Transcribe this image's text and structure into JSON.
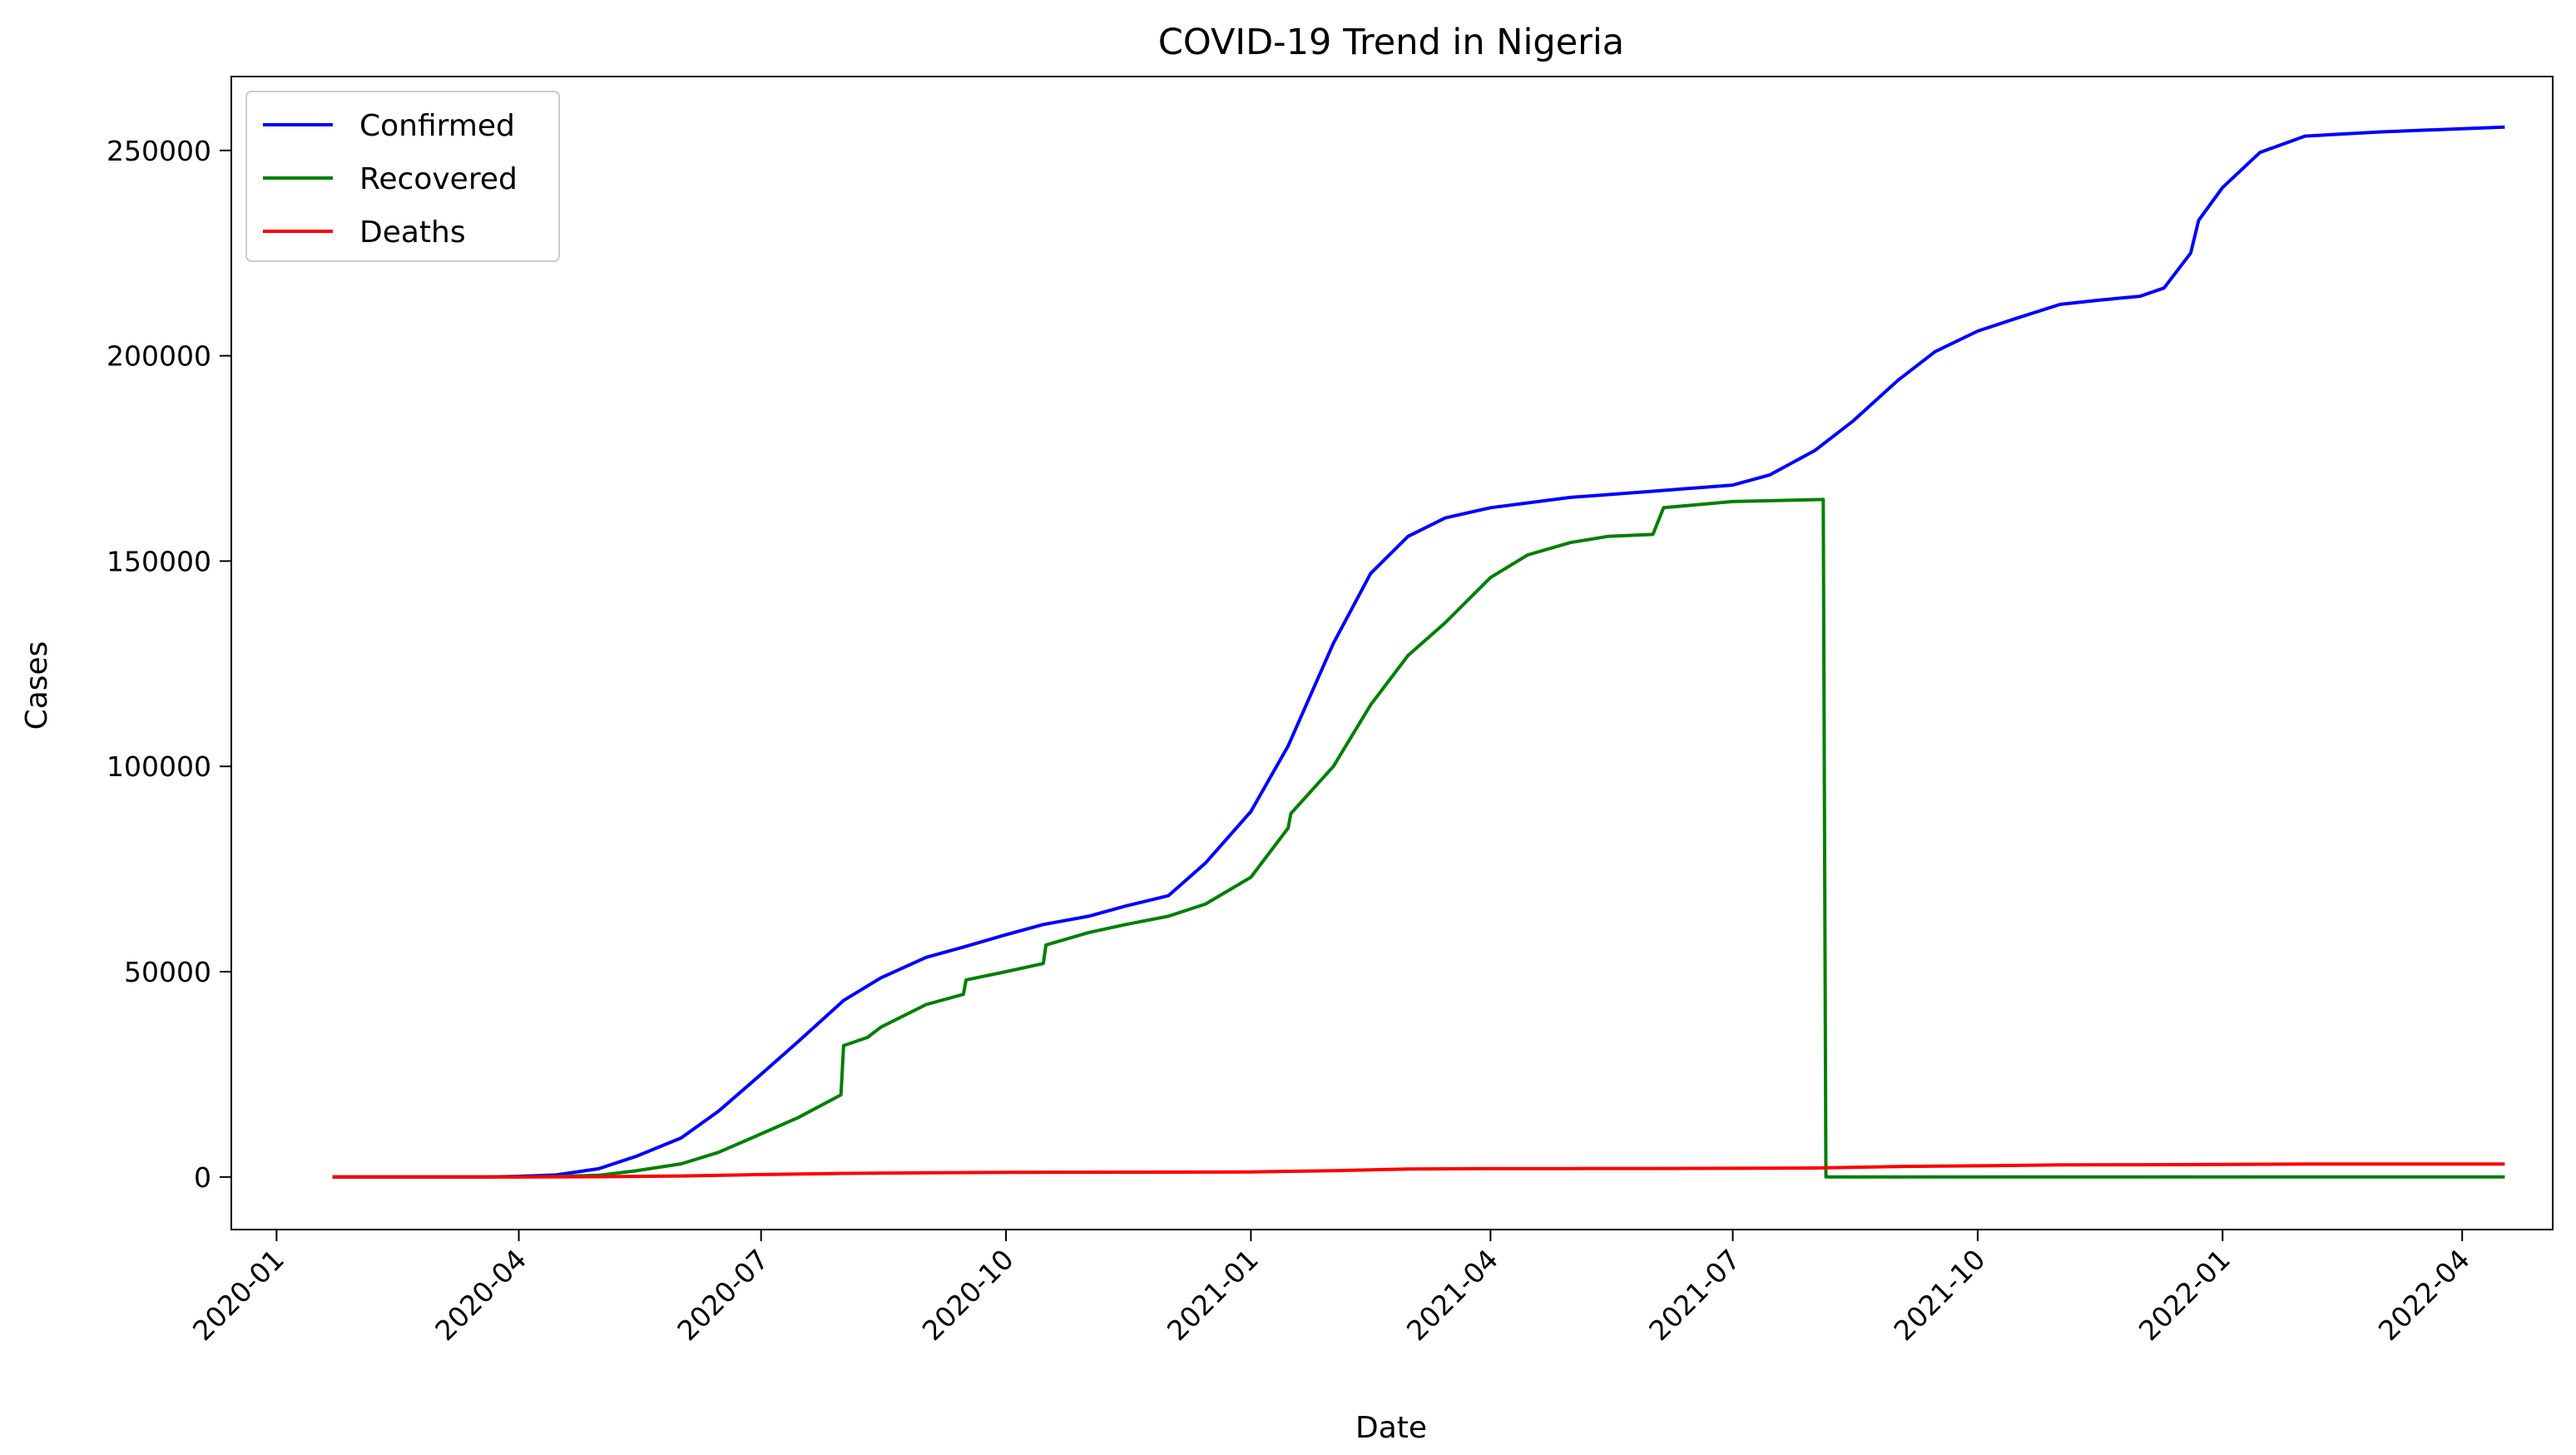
{
  "chart_data": {
    "type": "line",
    "title": "COVID-19 Trend in Nigeria",
    "xlabel": "Date",
    "ylabel": "Cases",
    "xlim": [
      "2019-12-15",
      "2022-05-05"
    ],
    "ylim": [
      -12800,
      268000
    ],
    "x_ticks": [
      "2020-01",
      "2020-04",
      "2020-07",
      "2020-10",
      "2021-01",
      "2021-04",
      "2021-07",
      "2021-10",
      "2022-01",
      "2022-04"
    ],
    "y_ticks": [
      0,
      50000,
      100000,
      150000,
      200000,
      250000
    ],
    "grid": false,
    "legend_position": "top-left",
    "series": [
      {
        "name": "Confirmed",
        "color": "#0000ff",
        "points": [
          [
            "2020-01-22",
            0
          ],
          [
            "2020-03-01",
            1
          ],
          [
            "2020-03-20",
            12
          ],
          [
            "2020-04-01",
            170
          ],
          [
            "2020-04-15",
            500
          ],
          [
            "2020-05-01",
            2000
          ],
          [
            "2020-05-15",
            5000
          ],
          [
            "2020-06-01",
            9500
          ],
          [
            "2020-06-15",
            16000
          ],
          [
            "2020-07-01",
            25000
          ],
          [
            "2020-07-15",
            33000
          ],
          [
            "2020-08-01",
            43000
          ],
          [
            "2020-08-15",
            48500
          ],
          [
            "2020-09-01",
            53500
          ],
          [
            "2020-09-15",
            56000
          ],
          [
            "2020-10-01",
            59000
          ],
          [
            "2020-10-15",
            61500
          ],
          [
            "2020-11-01",
            63500
          ],
          [
            "2020-11-15",
            66000
          ],
          [
            "2020-12-01",
            68500
          ],
          [
            "2020-12-15",
            76500
          ],
          [
            "2021-01-01",
            89000
          ],
          [
            "2021-01-15",
            105000
          ],
          [
            "2021-02-01",
            130000
          ],
          [
            "2021-02-15",
            147000
          ],
          [
            "2021-03-01",
            156000
          ],
          [
            "2021-03-15",
            160500
          ],
          [
            "2021-04-01",
            163000
          ],
          [
            "2021-05-01",
            165500
          ],
          [
            "2021-06-01",
            167000
          ],
          [
            "2021-07-01",
            168500
          ],
          [
            "2021-07-15",
            171000
          ],
          [
            "2021-08-01",
            177000
          ],
          [
            "2021-08-15",
            184000
          ],
          [
            "2021-09-01",
            194000
          ],
          [
            "2021-09-15",
            201000
          ],
          [
            "2021-10-01",
            206000
          ],
          [
            "2021-10-15",
            209000
          ],
          [
            "2021-11-01",
            212500
          ],
          [
            "2021-11-15",
            213500
          ],
          [
            "2021-12-01",
            214500
          ],
          [
            "2021-12-10",
            216500
          ],
          [
            "2021-12-20",
            225000
          ],
          [
            "2021-12-23",
            233000
          ],
          [
            "2022-01-01",
            241000
          ],
          [
            "2022-01-15",
            249500
          ],
          [
            "2022-02-01",
            253500
          ],
          [
            "2022-03-01",
            254500
          ],
          [
            "2022-04-17",
            255700
          ]
        ]
      },
      {
        "name": "Recovered",
        "color": "#008000",
        "points": [
          [
            "2020-01-22",
            0
          ],
          [
            "2020-04-01",
            20
          ],
          [
            "2020-04-15",
            100
          ],
          [
            "2020-05-01",
            400
          ],
          [
            "2020-05-15",
            1500
          ],
          [
            "2020-06-01",
            3200
          ],
          [
            "2020-06-15",
            6000
          ],
          [
            "2020-07-01",
            10500
          ],
          [
            "2020-07-15",
            14500
          ],
          [
            "2020-07-31",
            20000
          ],
          [
            "2020-08-01",
            32000
          ],
          [
            "2020-08-10",
            34000
          ],
          [
            "2020-08-15",
            36500
          ],
          [
            "2020-09-01",
            42000
          ],
          [
            "2020-09-15",
            44500
          ],
          [
            "2020-09-16",
            48000
          ],
          [
            "2020-10-01",
            50000
          ],
          [
            "2020-10-15",
            52000
          ],
          [
            "2020-10-16",
            56500
          ],
          [
            "2020-11-01",
            59500
          ],
          [
            "2020-11-15",
            61500
          ],
          [
            "2020-12-01",
            63500
          ],
          [
            "2020-12-15",
            66500
          ],
          [
            "2021-01-01",
            73000
          ],
          [
            "2021-01-15",
            85000
          ],
          [
            "2021-01-16",
            88500
          ],
          [
            "2021-02-01",
            100000
          ],
          [
            "2021-02-15",
            115000
          ],
          [
            "2021-03-01",
            127000
          ],
          [
            "2021-03-15",
            135000
          ],
          [
            "2021-04-01",
            146000
          ],
          [
            "2021-04-15",
            151500
          ],
          [
            "2021-05-01",
            154500
          ],
          [
            "2021-05-15",
            156000
          ],
          [
            "2021-06-01",
            156500
          ],
          [
            "2021-06-05",
            163000
          ],
          [
            "2021-07-01",
            164500
          ],
          [
            "2021-08-04",
            165000
          ],
          [
            "2021-08-05",
            0
          ],
          [
            "2022-04-17",
            0
          ]
        ]
      },
      {
        "name": "Deaths",
        "color": "#ff0000",
        "points": [
          [
            "2020-01-22",
            0
          ],
          [
            "2020-04-01",
            2
          ],
          [
            "2020-05-01",
            60
          ],
          [
            "2020-06-01",
            250
          ],
          [
            "2020-07-01",
            600
          ],
          [
            "2020-08-01",
            880
          ],
          [
            "2020-09-01",
            1010
          ],
          [
            "2020-10-01",
            1110
          ],
          [
            "2020-11-01",
            1150
          ],
          [
            "2020-12-01",
            1170
          ],
          [
            "2021-01-01",
            1250
          ],
          [
            "2021-02-01",
            1550
          ],
          [
            "2021-03-01",
            1950
          ],
          [
            "2021-04-01",
            2050
          ],
          [
            "2021-05-01",
            2060
          ],
          [
            "2021-06-01",
            2080
          ],
          [
            "2021-07-01",
            2120
          ],
          [
            "2021-08-01",
            2200
          ],
          [
            "2021-09-01",
            2550
          ],
          [
            "2021-10-01",
            2720
          ],
          [
            "2021-11-01",
            2950
          ],
          [
            "2021-12-01",
            2990
          ],
          [
            "2022-01-01",
            3050
          ],
          [
            "2022-02-01",
            3140
          ],
          [
            "2022-04-17",
            3143
          ]
        ]
      }
    ]
  }
}
